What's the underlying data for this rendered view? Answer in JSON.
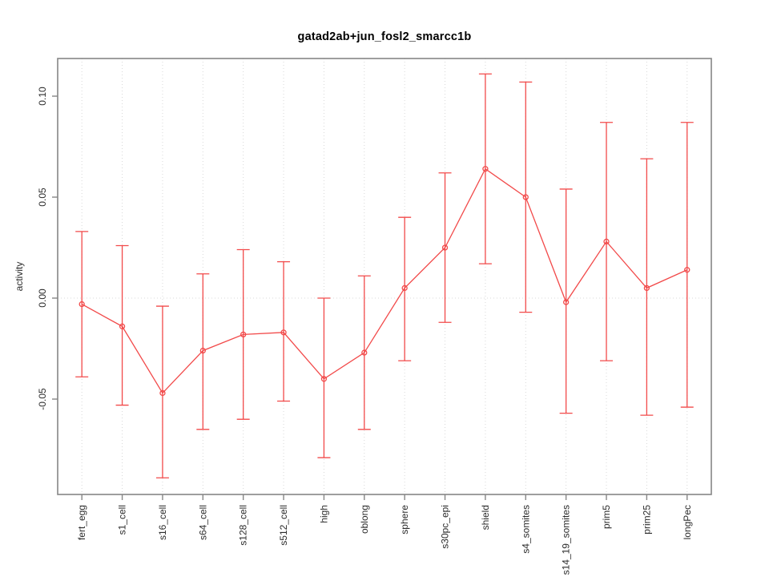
{
  "figure": {
    "title": "gatad2ab+jun_fosl2_smarcc1b"
  },
  "chart_data": {
    "type": "line",
    "title": "gatad2ab+jun_fosl2_smarcc1b",
    "xlabel": "",
    "ylabel": "activity",
    "marker": "open-circle",
    "legend": "none",
    "grid": "dotted vertical gridline at every category; dotted horizontal line at y=0",
    "categories": [
      "fert_egg",
      "s1_cell",
      "s16_cell",
      "s64_cell",
      "s128_cell",
      "s512_cell",
      "high",
      "oblong",
      "sphere",
      "s30pc_epi",
      "shield",
      "s4_somites",
      "s14_19_somites",
      "prim5",
      "prim25",
      "longPec"
    ],
    "series": [
      {
        "name": "activity",
        "values": [
          -0.003,
          -0.014,
          -0.047,
          -0.026,
          -0.018,
          -0.017,
          -0.04,
          -0.027,
          0.005,
          0.025,
          0.064,
          0.05,
          -0.002,
          0.028,
          0.005,
          0.014
        ],
        "error_low": [
          -0.039,
          -0.053,
          -0.089,
          -0.065,
          -0.06,
          -0.051,
          -0.079,
          -0.065,
          -0.031,
          -0.012,
          0.017,
          -0.007,
          -0.057,
          -0.031,
          -0.058,
          -0.054
        ],
        "error_high": [
          0.033,
          0.026,
          -0.004,
          0.012,
          0.024,
          0.018,
          0.0,
          0.011,
          0.04,
          0.062,
          0.111,
          0.107,
          0.054,
          0.087,
          0.069,
          0.087
        ]
      }
    ],
    "yticks": [
      {
        "value": 0.1,
        "label": "0.10"
      },
      {
        "value": 0.05,
        "label": "0.05"
      },
      {
        "value": 0.0,
        "label": "0.00"
      },
      {
        "value": -0.05,
        "label": "-0.05"
      }
    ],
    "ylim": [
      -0.097,
      0.119
    ],
    "zero_line": true,
    "colors": {
      "series": "#f24a4a",
      "grid": "#d8d8d8",
      "box": "#868686",
      "tick_text": "#2b2b2b",
      "title_text": "#000000"
    }
  }
}
